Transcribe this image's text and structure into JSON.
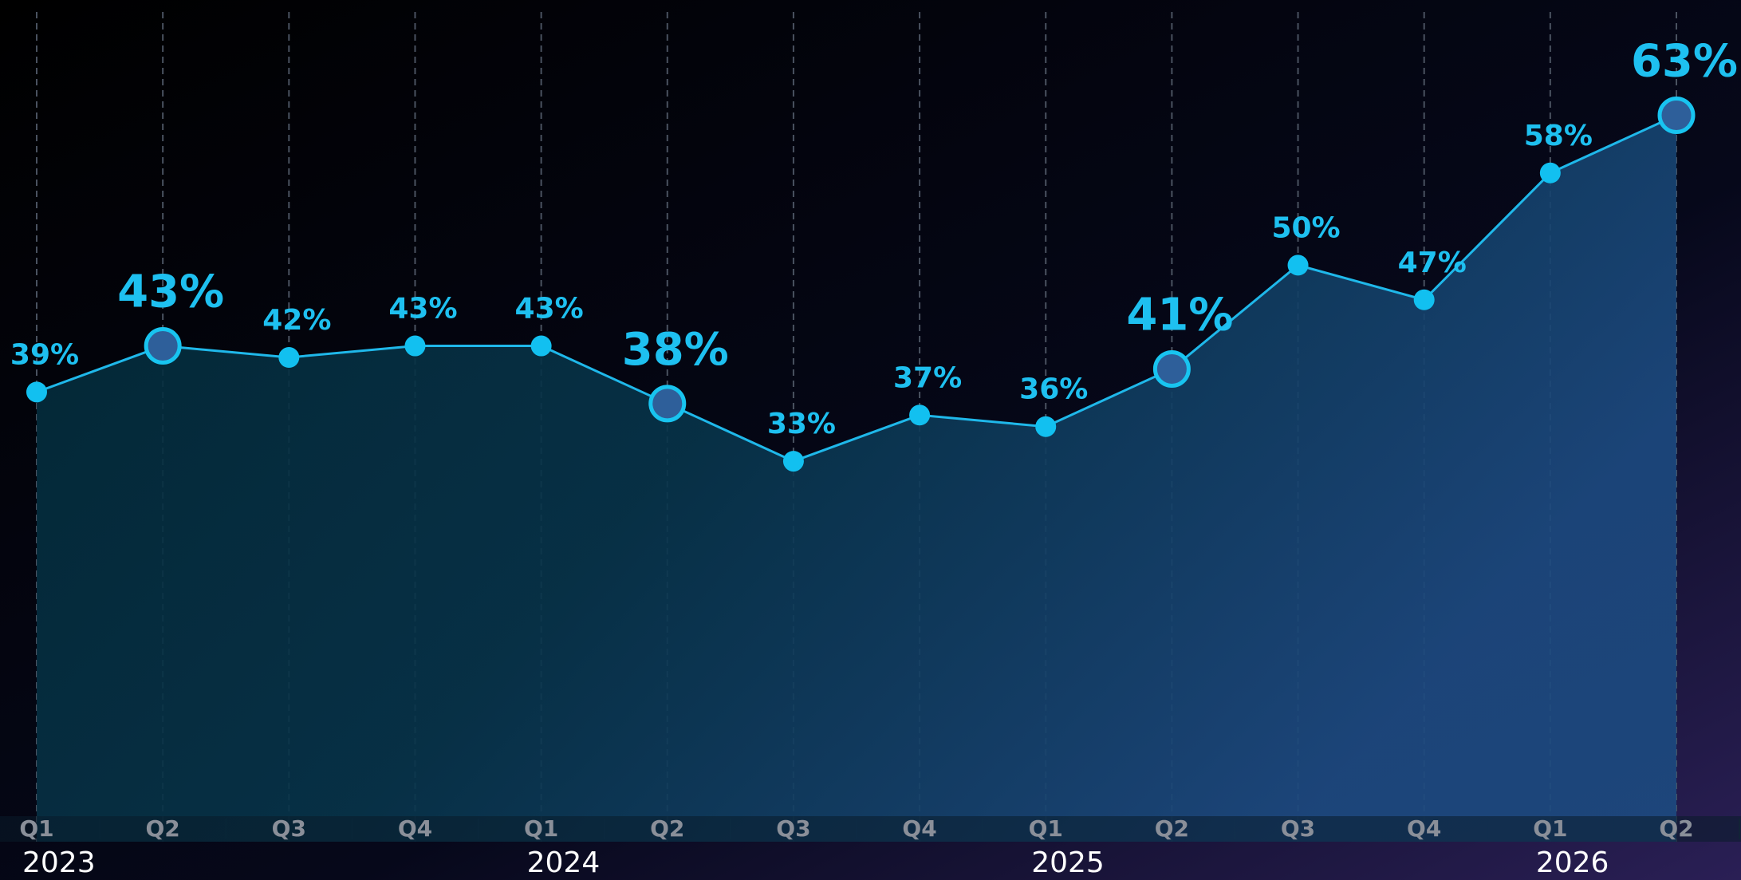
{
  "chart_data": {
    "type": "line",
    "categories": [
      "Q1",
      "Q2",
      "Q3",
      "Q4",
      "Q1",
      "Q2",
      "Q3",
      "Q4",
      "Q1",
      "Q2",
      "Q3",
      "Q4",
      "Q1",
      "Q2"
    ],
    "years": [
      "2023",
      "2024",
      "2025",
      "2026"
    ],
    "series": [
      {
        "color": "#1fb8ea",
        "values": [
          39,
          43,
          42,
          43,
          43,
          38,
          33,
          37,
          36,
          41,
          50,
          47,
          58,
          63
        ],
        "value_labels": [
          "39%",
          "43%",
          "42%",
          "43%",
          "43%",
          "38%",
          "33%",
          "37%",
          "36%",
          "41%",
          "50%",
          "47%",
          "58%",
          "63%"
        ]
      }
    ],
    "highlighted": [
      1,
      5,
      9,
      13
    ],
    "ylim": [
      0,
      73
    ],
    "grid": true
  }
}
